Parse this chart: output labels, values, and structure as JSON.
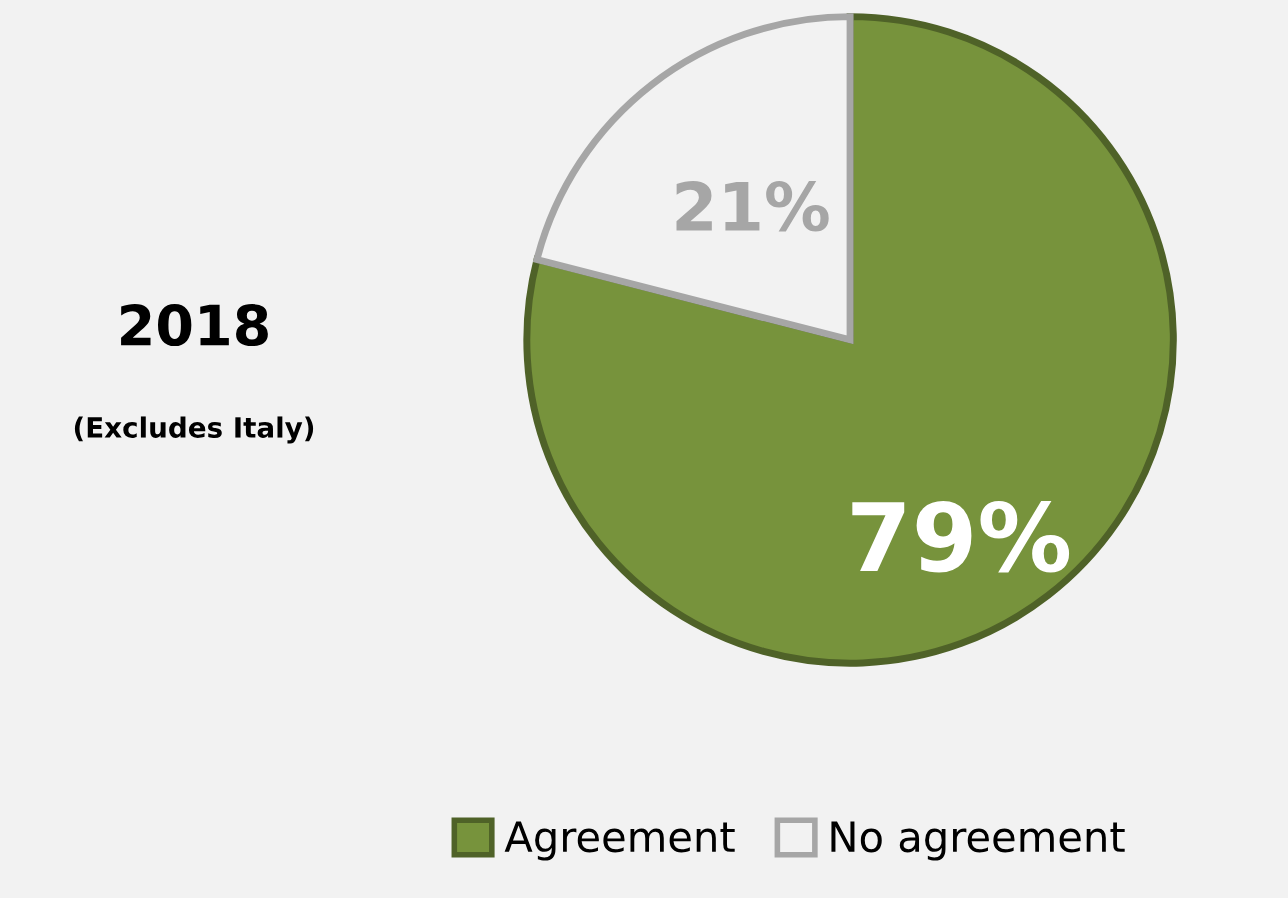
{
  "chart_data": {
    "type": "pie",
    "title": "2018",
    "subtitle": "(Excludes Italy)",
    "categories": [
      "Agreement",
      "No agreement"
    ],
    "values": [
      79,
      21
    ],
    "colors": [
      "#77933c",
      "#f2f2f2"
    ],
    "value_labels": [
      "79%",
      "21%"
    ],
    "legend": "bottom"
  }
}
